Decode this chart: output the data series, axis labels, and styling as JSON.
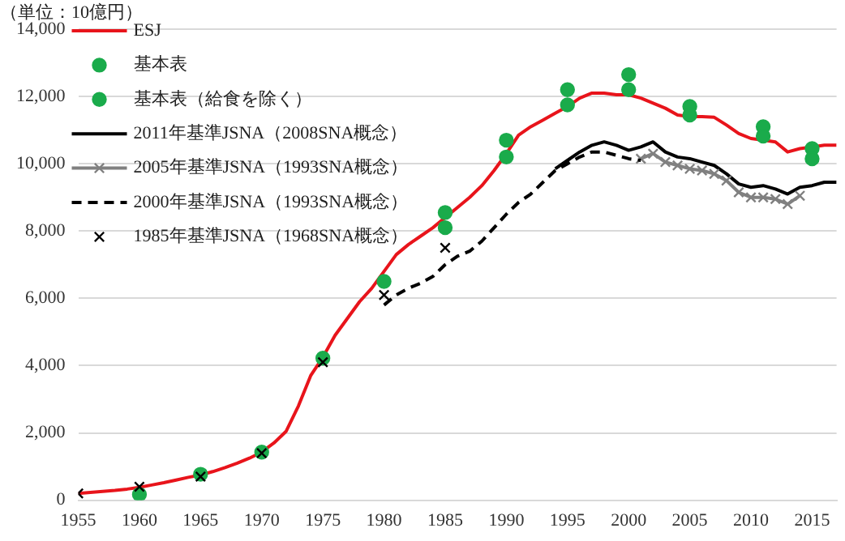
{
  "chart_data": {
    "type": "line",
    "ylabel": "（単位：10億円）",
    "xlim": [
      1955,
      2017
    ],
    "xticks": [
      {
        "value": 1955,
        "label": "1955"
      },
      {
        "value": 1960,
        "label": "1960"
      },
      {
        "value": 1965,
        "label": "1965"
      },
      {
        "value": 1970,
        "label": "1970"
      },
      {
        "value": 1975,
        "label": "1975"
      },
      {
        "value": 1980,
        "label": "1980"
      },
      {
        "value": 1985,
        "label": "1985"
      },
      {
        "value": 1990,
        "label": "1990"
      },
      {
        "value": 1995,
        "label": "1995"
      },
      {
        "value": 2000,
        "label": "2000"
      },
      {
        "value": 2005,
        "label": "2005"
      },
      {
        "value": 2010,
        "label": "2010"
      },
      {
        "value": 2015,
        "label": "2015"
      }
    ],
    "ylim": [
      0,
      14000
    ],
    "yticks": [
      0,
      {
        "value": 2000,
        "label": "2,000"
      },
      {
        "value": 4000,
        "label": "4,000"
      },
      {
        "value": 6000,
        "label": "6,000"
      },
      {
        "value": 8000,
        "label": "8,000"
      },
      {
        "value": 10000,
        "label": "10,000"
      },
      {
        "value": 12000,
        "label": "12,000"
      },
      {
        "value": 14000,
        "label": "14,000"
      }
    ],
    "grid": "y",
    "legend": "top left",
    "series": [
      {
        "name": "ESJ",
        "type": "line",
        "color": "#e8141b",
        "marker": "none",
        "line_style": "solid",
        "x": [
          1955,
          1956,
          1957,
          1958,
          1959,
          1960,
          1961,
          1962,
          1963,
          1964,
          1965,
          1966,
          1967,
          1968,
          1969,
          1970,
          1971,
          1972,
          1973,
          1974,
          1975,
          1976,
          1977,
          1978,
          1979,
          1980,
          1981,
          1982,
          1983,
          1984,
          1985,
          1986,
          1987,
          1988,
          1989,
          1990,
          1991,
          1992,
          1993,
          1994,
          1995,
          1996,
          1997,
          1998,
          1999,
          2000,
          2001,
          2002,
          2003,
          2004,
          2005,
          2006,
          2007,
          2008,
          2009,
          2010,
          2011,
          2012,
          2013,
          2014,
          2015,
          2016,
          2017
        ],
        "values": [
          200,
          230,
          260,
          290,
          330,
          380,
          450,
          520,
          600,
          680,
          750,
          850,
          970,
          1100,
          1250,
          1430,
          1700,
          2050,
          2800,
          3700,
          4250,
          4900,
          5400,
          5900,
          6300,
          6800,
          7300,
          7600,
          7850,
          8100,
          8400,
          8700,
          9000,
          9350,
          9800,
          10300,
          10850,
          11100,
          11300,
          11500,
          11700,
          11950,
          12100,
          12100,
          12050,
          12050,
          11950,
          11800,
          11650,
          11450,
          11400,
          11400,
          11380,
          11150,
          10900,
          10750,
          10700,
          10650,
          10350,
          10450,
          10500,
          10550,
          10550
        ]
      },
      {
        "name": "基本表",
        "type": "scatter",
        "color": "#1aab4b",
        "marker": "circle",
        "x": [
          1985,
          1990,
          1995,
          2000,
          2005,
          2011,
          2015
        ],
        "values": [
          8550,
          10700,
          12200,
          12650,
          11700,
          11100,
          10450
        ]
      },
      {
        "name": "基本表（給食を除く）",
        "type": "scatter",
        "color": "#1aab4b",
        "marker": "circle",
        "x": [
          1960,
          1965,
          1970,
          1975,
          1980,
          1985,
          1990,
          1995,
          2000,
          2005,
          2011,
          2015
        ],
        "values": [
          170,
          770,
          1430,
          4220,
          6500,
          8100,
          10200,
          11750,
          12200,
          11450,
          10820,
          10150
        ]
      },
      {
        "name": "2011年基準JSNA（2008SNA概念）",
        "type": "line",
        "color": "#000000",
        "marker": "none",
        "line_style": "solid",
        "x": [
          1994,
          1995,
          1996,
          1997,
          1998,
          1999,
          2000,
          2001,
          2002,
          2003,
          2004,
          2005,
          2006,
          2007,
          2008,
          2009,
          2010,
          2011,
          2012,
          2013,
          2014,
          2015,
          2016,
          2017
        ],
        "values": [
          9850,
          10100,
          10350,
          10550,
          10650,
          10550,
          10400,
          10500,
          10650,
          10350,
          10200,
          10150,
          10050,
          9950,
          9700,
          9400,
          9300,
          9350,
          9250,
          9100,
          9300,
          9350,
          9450,
          9450
        ]
      },
      {
        "name": "2005年基準JSNA（1993SNA概念）",
        "type": "line",
        "color": "#808080",
        "marker": "cross",
        "line_style": "solid",
        "x": [
          2001,
          2002,
          2003,
          2004,
          2005,
          2006,
          2007,
          2008,
          2009,
          2010,
          2011,
          2012,
          2013,
          2014
        ],
        "values": [
          10150,
          10300,
          10050,
          9950,
          9850,
          9800,
          9700,
          9500,
          9150,
          9000,
          9000,
          8950,
          8800,
          9050
        ]
      },
      {
        "name": "2000年基準JSNA（1993SNA概念）",
        "type": "line",
        "color": "#000000",
        "marker": "none",
        "line_style": "dashed",
        "x": [
          1980,
          1981,
          1982,
          1983,
          1984,
          1985,
          1986,
          1987,
          1988,
          1989,
          1990,
          1991,
          1992,
          1993,
          1994,
          1995,
          1996,
          1997,
          1998,
          1999,
          2000,
          2001
        ],
        "values": [
          5800,
          6100,
          6300,
          6450,
          6650,
          7000,
          7250,
          7400,
          7700,
          8100,
          8500,
          8850,
          9100,
          9450,
          9800,
          10000,
          10200,
          10350,
          10350,
          10250,
          10150,
          10100
        ]
      },
      {
        "name": "1985年基準JSNA（1968SNA概念）",
        "type": "scatter",
        "color": "#000000",
        "marker": "cross",
        "x": [
          1955,
          1960,
          1965,
          1970,
          1975,
          1980,
          1985
        ],
        "values": [
          200,
          400,
          700,
          1400,
          4100,
          6100,
          7500
        ]
      }
    ]
  }
}
